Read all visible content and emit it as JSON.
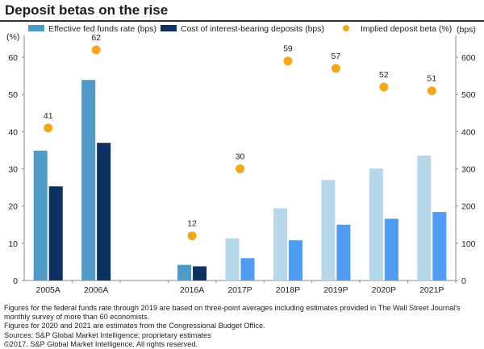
{
  "chart_data": {
    "type": "bar",
    "title": "Deposit betas on the rise",
    "left_axis_unit": "(%)",
    "right_axis_unit": "(bps)",
    "categories": [
      "2005A",
      "2006A",
      "",
      "2016A",
      "2017P",
      "2018P",
      "2019P",
      "2020P",
      "2021P"
    ],
    "left_ylim": [
      0,
      65
    ],
    "left_ticks": [
      0,
      10,
      20,
      30,
      40,
      50,
      60
    ],
    "right_ylim": [
      0,
      650
    ],
    "right_ticks": [
      0,
      100,
      200,
      300,
      400,
      500,
      600
    ],
    "series": [
      {
        "name": "Effective fed funds rate (bps)",
        "type": "bar",
        "axis": "right",
        "values": [
          349,
          539,
          null,
          42,
          113,
          194,
          270,
          301,
          336
        ],
        "colors": [
          "#4f9ac7",
          "#4f9ac7",
          "",
          "#4f9ac7",
          "#b6d6ea",
          "#b6d6ea",
          "#b6d6ea",
          "#b6d6ea",
          "#b6d6ea"
        ]
      },
      {
        "name": "Cost of interest-bearing deposits (bps)",
        "type": "bar",
        "axis": "right",
        "values": [
          253,
          370,
          null,
          38,
          60,
          108,
          150,
          166,
          184
        ],
        "colors": [
          "#0d3160",
          "#0d3160",
          "",
          "#0d3160",
          "#4f9cf2",
          "#4f9cf2",
          "#4f9cf2",
          "#4f9cf2",
          "#4f9cf2"
        ]
      },
      {
        "name": "Implied deposit beta (%)",
        "type": "scatter",
        "axis": "left",
        "values": [
          41,
          62,
          null,
          12,
          30,
          59,
          57,
          52,
          51
        ],
        "labels": [
          "41",
          "62",
          "",
          "12",
          "30",
          "59",
          "57",
          "52",
          "51"
        ],
        "color": "#f3a81c"
      }
    ]
  },
  "footnotes": [
    "Figures for the federal funds rate through 2019 are based on three-point averages including estimates provided in The Wall Street Journal's",
    "monthly survey of more than 60 economists.",
    "Figures for 2020 and 2021 are estimates from the Congressional Budget Office.",
    "Sources: S&P Global Market Intelligence; proprietary estimates",
    "©2017. S&P Global Market Intelligence. All rights reserved."
  ]
}
